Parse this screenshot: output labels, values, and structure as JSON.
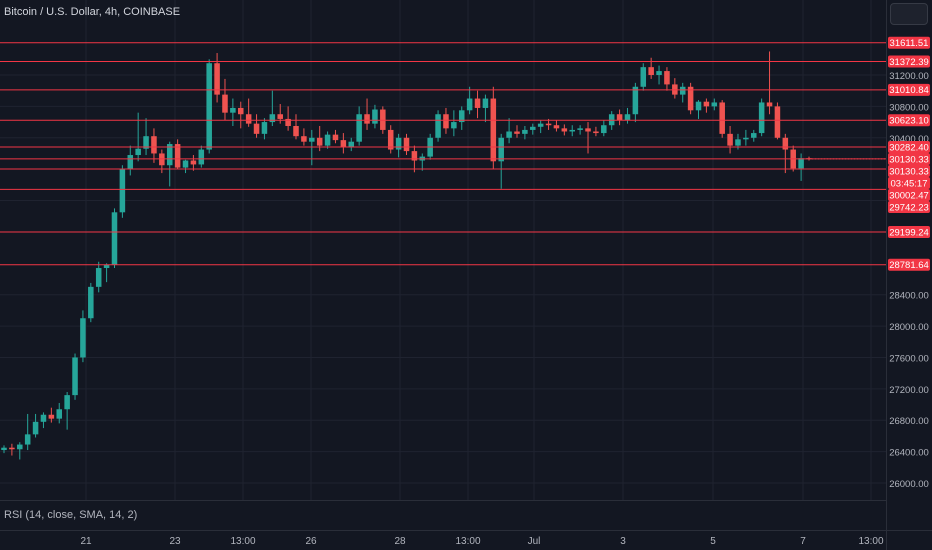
{
  "header": {
    "title": "Bitcoin / U.S. Dollar, 4h, COINBASE"
  },
  "indicator": {
    "label": "RSI (14, close, SMA, 14, 2)"
  },
  "colors": {
    "background": "#131722",
    "up": "#26a69a",
    "down": "#ef5350",
    "level_line": "#f23645",
    "axis_text": "#b2b5be",
    "grid": "#1f2330"
  },
  "chart_data": {
    "type": "candlestick",
    "title": "Bitcoin / U.S. Dollar, 4h, COINBASE",
    "y_axis_ticks": [
      31200,
      30800,
      30400,
      29600,
      29200,
      28400,
      28000,
      27600,
      27200,
      26800,
      26400,
      26000
    ],
    "x_axis_ticks": [
      "21",
      "23",
      "13:00",
      "26",
      "28",
      "13:00",
      "Jul",
      "3",
      "5",
      "7",
      "13:00"
    ],
    "ylim": [
      25500,
      31900
    ],
    "horizontal_levels": [
      31611.51,
      31372.39,
      31010.84,
      30623.1,
      30282.4,
      30130.33,
      30002.47,
      29742.23,
      29199.24,
      28781.64
    ],
    "current_price": 30130.33,
    "countdown": "03:45:17",
    "candles": [
      {
        "o": 26420,
        "h": 26480,
        "l": 26380,
        "c": 26450
      },
      {
        "o": 26450,
        "h": 26500,
        "l": 26350,
        "c": 26430
      },
      {
        "o": 26430,
        "h": 26520,
        "l": 26300,
        "c": 26490
      },
      {
        "o": 26490,
        "h": 26880,
        "l": 26420,
        "c": 26620
      },
      {
        "o": 26620,
        "h": 26880,
        "l": 26580,
        "c": 26780
      },
      {
        "o": 26780,
        "h": 26900,
        "l": 26700,
        "c": 26870
      },
      {
        "o": 26870,
        "h": 26960,
        "l": 26770,
        "c": 26820
      },
      {
        "o": 26820,
        "h": 27020,
        "l": 26760,
        "c": 26940
      },
      {
        "o": 26940,
        "h": 27160,
        "l": 26680,
        "c": 27120
      },
      {
        "o": 27120,
        "h": 27650,
        "l": 27060,
        "c": 27600
      },
      {
        "o": 27600,
        "h": 28200,
        "l": 27540,
        "c": 28100
      },
      {
        "o": 28100,
        "h": 28550,
        "l": 28050,
        "c": 28500
      },
      {
        "o": 28500,
        "h": 28820,
        "l": 28430,
        "c": 28740
      },
      {
        "o": 28740,
        "h": 28800,
        "l": 28560,
        "c": 28780
      },
      {
        "o": 28780,
        "h": 29500,
        "l": 28740,
        "c": 29450
      },
      {
        "o": 29450,
        "h": 30050,
        "l": 29380,
        "c": 30000
      },
      {
        "o": 30000,
        "h": 30300,
        "l": 29920,
        "c": 30180
      },
      {
        "o": 30180,
        "h": 30720,
        "l": 30100,
        "c": 30260
      },
      {
        "o": 30260,
        "h": 30650,
        "l": 30180,
        "c": 30420
      },
      {
        "o": 30420,
        "h": 30520,
        "l": 30080,
        "c": 30200
      },
      {
        "o": 30200,
        "h": 30250,
        "l": 29950,
        "c": 30050
      },
      {
        "o": 30050,
        "h": 30350,
        "l": 29780,
        "c": 30320
      },
      {
        "o": 30320,
        "h": 30380,
        "l": 30000,
        "c": 30020
      },
      {
        "o": 30020,
        "h": 30120,
        "l": 29950,
        "c": 30110
      },
      {
        "o": 30110,
        "h": 30180,
        "l": 29980,
        "c": 30060
      },
      {
        "o": 30060,
        "h": 30300,
        "l": 30020,
        "c": 30250
      },
      {
        "o": 30250,
        "h": 31400,
        "l": 30200,
        "c": 31350
      },
      {
        "o": 31350,
        "h": 31480,
        "l": 30850,
        "c": 30950
      },
      {
        "o": 30950,
        "h": 31150,
        "l": 30620,
        "c": 30720
      },
      {
        "o": 30720,
        "h": 30900,
        "l": 30550,
        "c": 30780
      },
      {
        "o": 30780,
        "h": 30860,
        "l": 30520,
        "c": 30700
      },
      {
        "o": 30700,
        "h": 30900,
        "l": 30540,
        "c": 30580
      },
      {
        "o": 30580,
        "h": 30700,
        "l": 30400,
        "c": 30450
      },
      {
        "o": 30450,
        "h": 30650,
        "l": 30380,
        "c": 30600
      },
      {
        "o": 30600,
        "h": 31000,
        "l": 30550,
        "c": 30700
      },
      {
        "o": 30700,
        "h": 30830,
        "l": 30580,
        "c": 30640
      },
      {
        "o": 30640,
        "h": 30800,
        "l": 30490,
        "c": 30550
      },
      {
        "o": 30550,
        "h": 30700,
        "l": 30380,
        "c": 30420
      },
      {
        "o": 30420,
        "h": 30520,
        "l": 30300,
        "c": 30350
      },
      {
        "o": 30350,
        "h": 30500,
        "l": 30050,
        "c": 30400
      },
      {
        "o": 30400,
        "h": 30550,
        "l": 30230,
        "c": 30300
      },
      {
        "o": 30300,
        "h": 30480,
        "l": 30260,
        "c": 30440
      },
      {
        "o": 30440,
        "h": 30500,
        "l": 30330,
        "c": 30370
      },
      {
        "o": 30370,
        "h": 30460,
        "l": 30200,
        "c": 30280
      },
      {
        "o": 30280,
        "h": 30400,
        "l": 30230,
        "c": 30350
      },
      {
        "o": 30350,
        "h": 30800,
        "l": 30300,
        "c": 30700
      },
      {
        "o": 30700,
        "h": 30900,
        "l": 30500,
        "c": 30580
      },
      {
        "o": 30580,
        "h": 30820,
        "l": 30520,
        "c": 30760
      },
      {
        "o": 30760,
        "h": 30800,
        "l": 30450,
        "c": 30500
      },
      {
        "o": 30500,
        "h": 30560,
        "l": 30200,
        "c": 30250
      },
      {
        "o": 30250,
        "h": 30450,
        "l": 30150,
        "c": 30400
      },
      {
        "o": 30400,
        "h": 30450,
        "l": 30180,
        "c": 30230
      },
      {
        "o": 30230,
        "h": 30300,
        "l": 29960,
        "c": 30110
      },
      {
        "o": 30110,
        "h": 30200,
        "l": 29980,
        "c": 30160
      },
      {
        "o": 30160,
        "h": 30450,
        "l": 30120,
        "c": 30400
      },
      {
        "o": 30400,
        "h": 30750,
        "l": 30350,
        "c": 30700
      },
      {
        "o": 30700,
        "h": 30780,
        "l": 30450,
        "c": 30520
      },
      {
        "o": 30520,
        "h": 30750,
        "l": 30420,
        "c": 30600
      },
      {
        "o": 30600,
        "h": 30800,
        "l": 30500,
        "c": 30750
      },
      {
        "o": 30750,
        "h": 31050,
        "l": 30700,
        "c": 30900
      },
      {
        "o": 30900,
        "h": 31000,
        "l": 30650,
        "c": 30780
      },
      {
        "o": 30780,
        "h": 30950,
        "l": 30600,
        "c": 30900
      },
      {
        "o": 30900,
        "h": 31050,
        "l": 30000,
        "c": 30100
      },
      {
        "o": 30100,
        "h": 30450,
        "l": 29750,
        "c": 30400
      },
      {
        "o": 30400,
        "h": 30650,
        "l": 30330,
        "c": 30480
      },
      {
        "o": 30480,
        "h": 30560,
        "l": 30400,
        "c": 30450
      },
      {
        "o": 30450,
        "h": 30550,
        "l": 30380,
        "c": 30500
      },
      {
        "o": 30500,
        "h": 30580,
        "l": 30440,
        "c": 30540
      },
      {
        "o": 30540,
        "h": 30620,
        "l": 30460,
        "c": 30580
      },
      {
        "o": 30580,
        "h": 30640,
        "l": 30500,
        "c": 30560
      },
      {
        "o": 30560,
        "h": 30620,
        "l": 30480,
        "c": 30520
      },
      {
        "o": 30520,
        "h": 30570,
        "l": 30430,
        "c": 30480
      },
      {
        "o": 30480,
        "h": 30560,
        "l": 30420,
        "c": 30500
      },
      {
        "o": 30500,
        "h": 30560,
        "l": 30440,
        "c": 30520
      },
      {
        "o": 30520,
        "h": 30600,
        "l": 30200,
        "c": 30480
      },
      {
        "o": 30480,
        "h": 30540,
        "l": 30420,
        "c": 30460
      },
      {
        "o": 30460,
        "h": 30620,
        "l": 30420,
        "c": 30560
      },
      {
        "o": 30560,
        "h": 30740,
        "l": 30500,
        "c": 30700
      },
      {
        "o": 30700,
        "h": 30760,
        "l": 30560,
        "c": 30620
      },
      {
        "o": 30620,
        "h": 30780,
        "l": 30580,
        "c": 30700
      },
      {
        "o": 30700,
        "h": 31100,
        "l": 30600,
        "c": 31050
      },
      {
        "o": 31050,
        "h": 31350,
        "l": 31000,
        "c": 31300
      },
      {
        "o": 31300,
        "h": 31420,
        "l": 31150,
        "c": 31200
      },
      {
        "o": 31200,
        "h": 31320,
        "l": 31080,
        "c": 31250
      },
      {
        "o": 31250,
        "h": 31300,
        "l": 31000,
        "c": 31080
      },
      {
        "o": 31080,
        "h": 31160,
        "l": 30900,
        "c": 30950
      },
      {
        "o": 30950,
        "h": 31100,
        "l": 30850,
        "c": 31050
      },
      {
        "o": 31050,
        "h": 31100,
        "l": 30700,
        "c": 30750
      },
      {
        "o": 30750,
        "h": 30880,
        "l": 30640,
        "c": 30860
      },
      {
        "o": 30860,
        "h": 30900,
        "l": 30720,
        "c": 30800
      },
      {
        "o": 30800,
        "h": 30900,
        "l": 30750,
        "c": 30850
      },
      {
        "o": 30850,
        "h": 30880,
        "l": 30400,
        "c": 30450
      },
      {
        "o": 30450,
        "h": 30550,
        "l": 30200,
        "c": 30300
      },
      {
        "o": 30300,
        "h": 30450,
        "l": 30250,
        "c": 30380
      },
      {
        "o": 30380,
        "h": 30500,
        "l": 30300,
        "c": 30400
      },
      {
        "o": 30400,
        "h": 30500,
        "l": 30350,
        "c": 30460
      },
      {
        "o": 30460,
        "h": 30900,
        "l": 30420,
        "c": 30850
      },
      {
        "o": 30850,
        "h": 31500,
        "l": 30700,
        "c": 30800
      },
      {
        "o": 30800,
        "h": 30850,
        "l": 30380,
        "c": 30400
      },
      {
        "o": 30400,
        "h": 30450,
        "l": 29950,
        "c": 30250
      },
      {
        "o": 30250,
        "h": 30300,
        "l": 29970,
        "c": 30010
      },
      {
        "o": 30010,
        "h": 30200,
        "l": 29850,
        "c": 30140
      },
      {
        "o": 30140,
        "h": 30160,
        "l": 30110,
        "c": 30130
      }
    ]
  }
}
